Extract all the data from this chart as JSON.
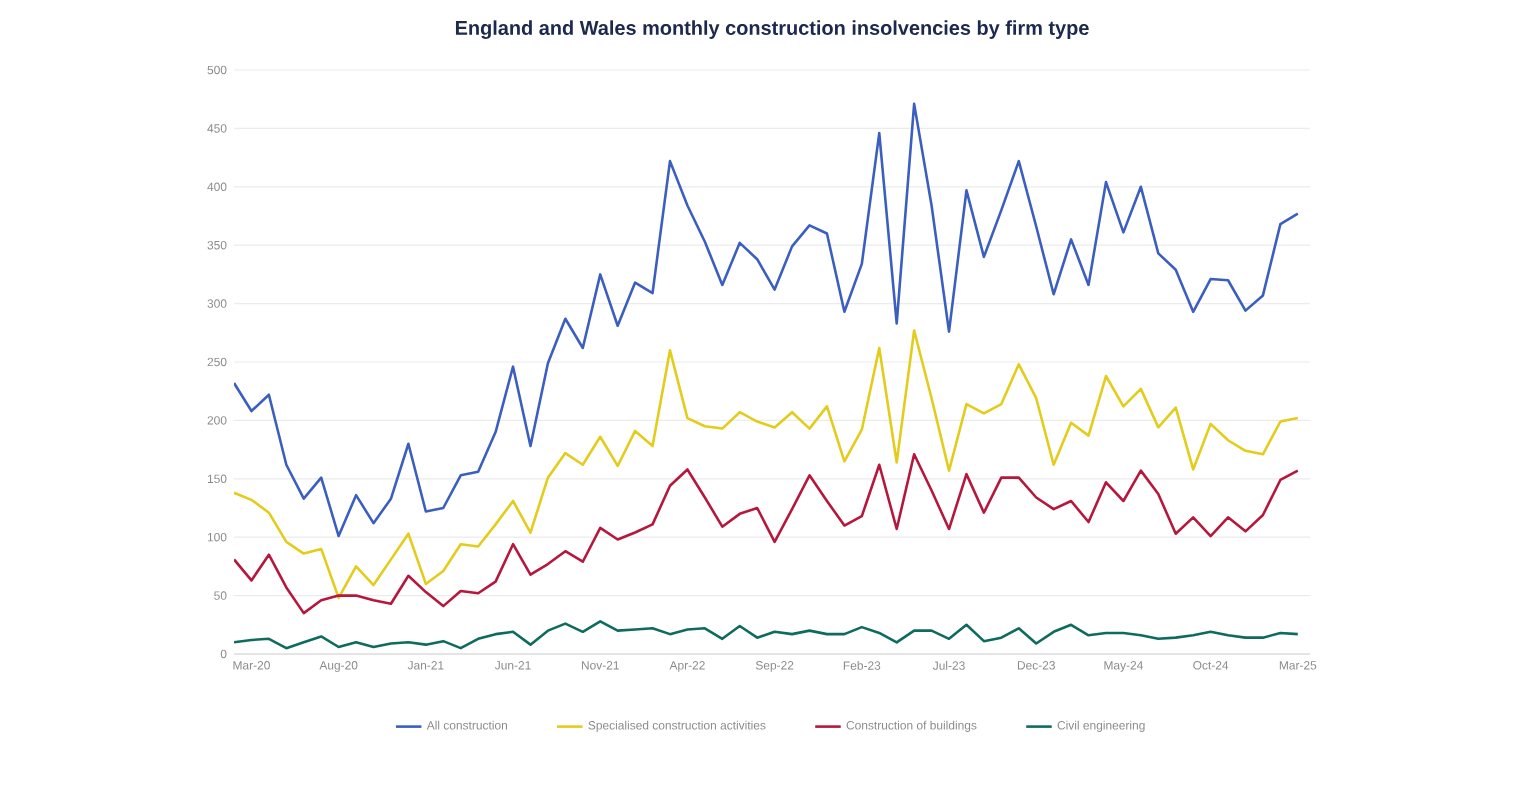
{
  "chart_data": {
    "type": "line",
    "title": "England and Wales monthly construction insolvencies by firm type",
    "categories": [
      null,
      "Mar-20",
      null,
      null,
      null,
      null,
      "Aug-20",
      null,
      null,
      null,
      null,
      "Jan-21",
      null,
      null,
      null,
      null,
      "Jun-21",
      null,
      null,
      null,
      null,
      "Nov-21",
      null,
      null,
      null,
      null,
      "Apr-22",
      null,
      null,
      null,
      null,
      "Sep-22",
      null,
      null,
      null,
      null,
      "Feb-23",
      null,
      null,
      null,
      null,
      "Jul-23",
      null,
      null,
      null,
      null,
      "Dec-23",
      null,
      null,
      null,
      null,
      "May-24",
      null,
      null,
      null,
      null,
      "Oct-24",
      null,
      null,
      null,
      null,
      "Mar-25"
    ],
    "series": [
      {
        "name": "All construction",
        "color": "#3a5fbf",
        "values": [
          232,
          208,
          222,
          162,
          133,
          151,
          101,
          136,
          112,
          133,
          180,
          122,
          125,
          153,
          156,
          190,
          246,
          178,
          249,
          287,
          262,
          325,
          281,
          318,
          309,
          422,
          384,
          353,
          316,
          352,
          338,
          312,
          349,
          367,
          360,
          293,
          334,
          446,
          283,
          471,
          384,
          276,
          397,
          340,
          380,
          422,
          366,
          308,
          355,
          316,
          404,
          361,
          400,
          343,
          329,
          293,
          321,
          320,
          294,
          307,
          368,
          377
        ]
      },
      {
        "name": "Specialised construction activities",
        "color": "#e3cc1c",
        "values": [
          138,
          132,
          121,
          96,
          86,
          90,
          48,
          75,
          59,
          81,
          103,
          60,
          71,
          94,
          92,
          111,
          131,
          104,
          151,
          172,
          162,
          186,
          161,
          191,
          178,
          260,
          202,
          195,
          193,
          207,
          199,
          194,
          207,
          193,
          212,
          165,
          192,
          262,
          164,
          277,
          219,
          157,
          214,
          206,
          214,
          248,
          219,
          162,
          198,
          187,
          238,
          212,
          227,
          194,
          211,
          158,
          197,
          183,
          174,
          171,
          199,
          202
        ]
      },
      {
        "name": "Construction of buildings",
        "color": "#b5173d",
        "values": [
          81,
          63,
          85,
          57,
          35,
          46,
          50,
          50,
          46,
          43,
          67,
          53,
          41,
          54,
          52,
          62,
          94,
          68,
          77,
          88,
          79,
          108,
          98,
          104,
          111,
          144,
          158,
          134,
          109,
          120,
          125,
          96,
          124,
          153,
          131,
          110,
          118,
          162,
          107,
          171,
          140,
          107,
          154,
          121,
          151,
          151,
          134,
          124,
          131,
          113,
          147,
          131,
          157,
          137,
          103,
          117,
          101,
          117,
          105,
          119,
          149,
          157
        ]
      },
      {
        "name": "Civil engineering",
        "color": "#0e6b5e",
        "values": [
          10,
          12,
          13,
          5,
          10,
          15,
          6,
          10,
          6,
          9,
          10,
          8,
          11,
          5,
          13,
          17,
          19,
          8,
          20,
          26,
          19,
          28,
          20,
          21,
          22,
          17,
          21,
          22,
          13,
          24,
          14,
          19,
          17,
          20,
          17,
          17,
          23,
          18,
          10,
          20,
          20,
          13,
          25,
          11,
          14,
          22,
          9,
          19,
          25,
          16,
          18,
          18,
          16,
          13,
          14,
          16,
          19,
          16,
          14,
          14,
          18,
          17
        ]
      }
    ],
    "ylim": [
      0,
      500
    ],
    "yticks": [
      0,
      50,
      100,
      150,
      200,
      250,
      300,
      350,
      400,
      450,
      500
    ],
    "grid": "y",
    "legend": "bottom"
  }
}
